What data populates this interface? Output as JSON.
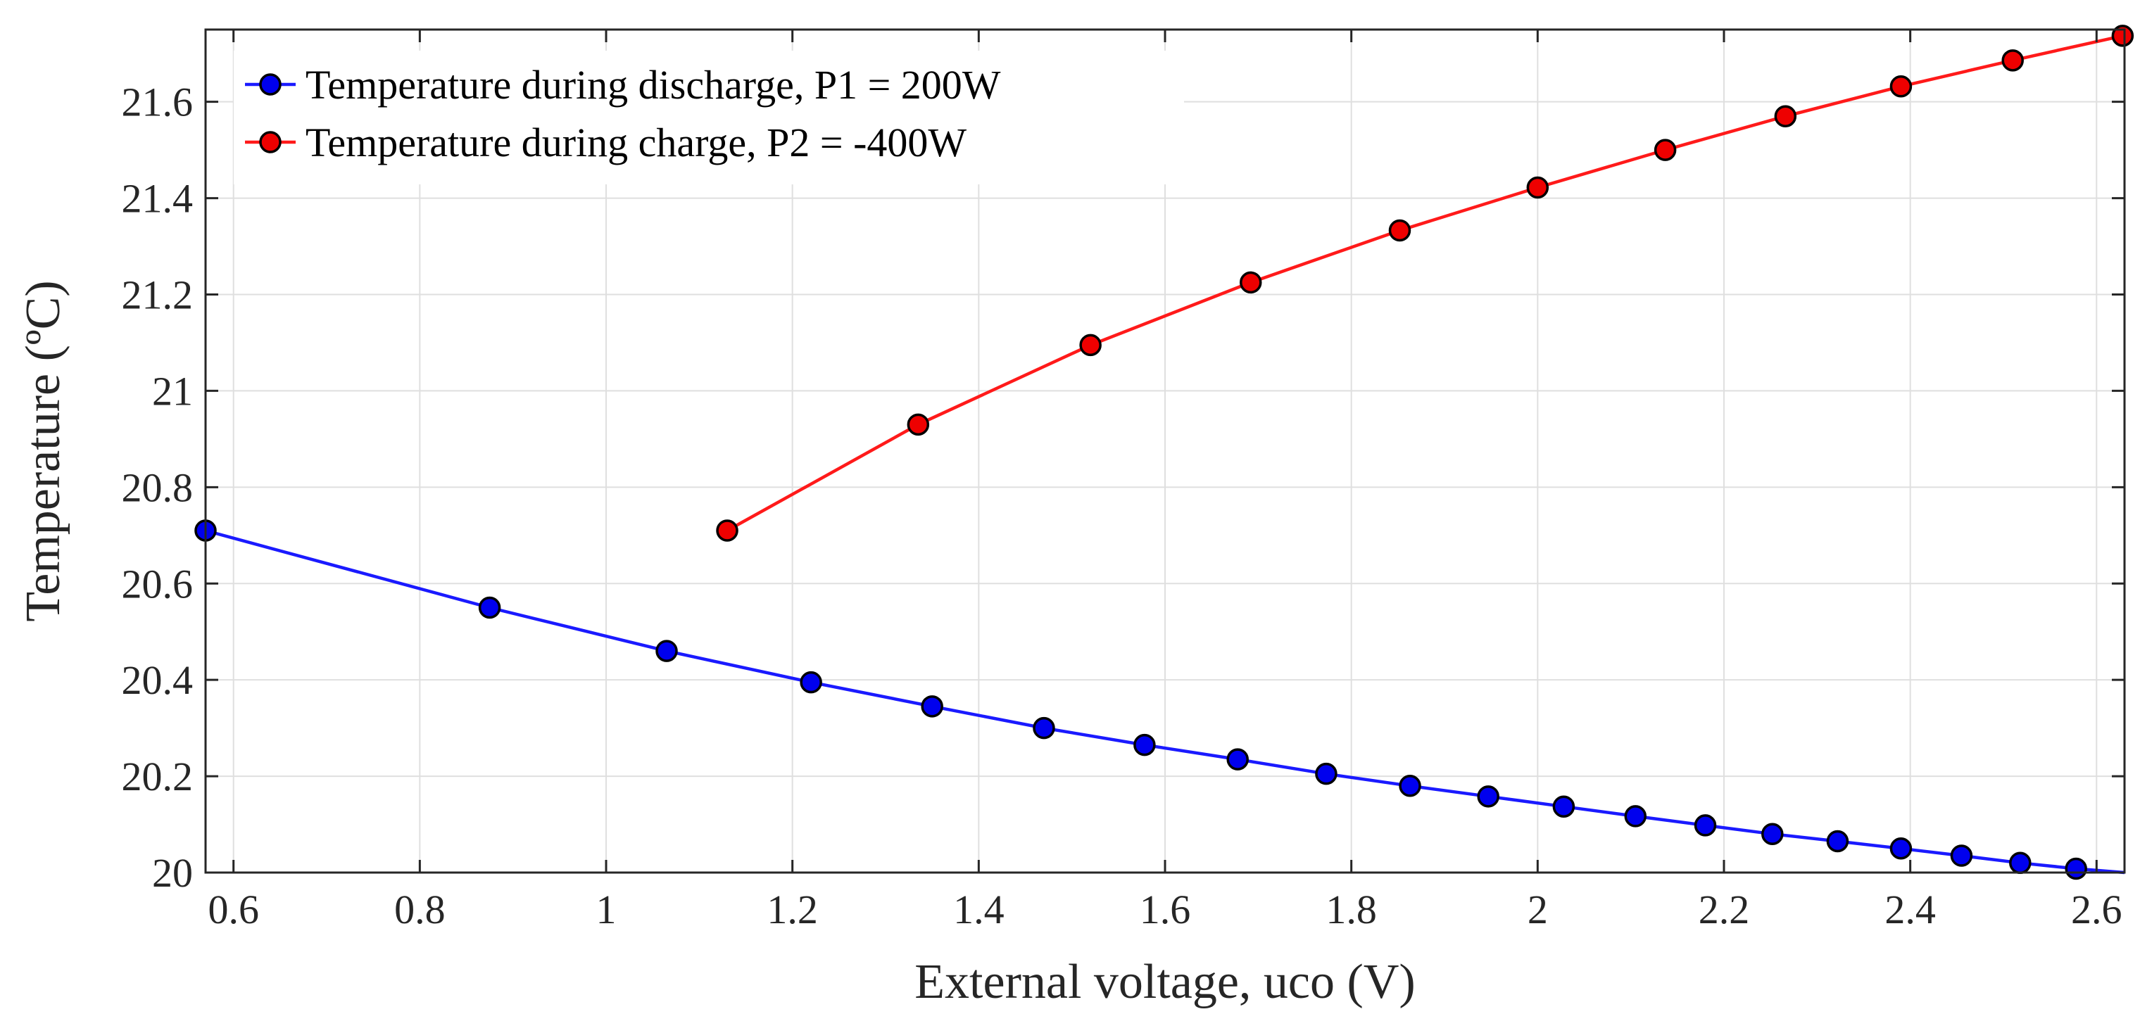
{
  "chart_data": {
    "type": "line",
    "title": "",
    "xlabel": "External voltage, uco (V)",
    "ylabel": "Temperature (ºC)",
    "xlim": [
      0.57,
      2.63
    ],
    "ylim": [
      20,
      21.75
    ],
    "x_ticks": [
      "0.6",
      "0.8",
      "1",
      "1.2",
      "1.4",
      "1.6",
      "1.8",
      "2",
      "2.2",
      "2.4",
      "2.6"
    ],
    "y_ticks": [
      "20",
      "20.2",
      "20.4",
      "20.6",
      "20.8",
      "21",
      "21.2",
      "21.4",
      "21.6"
    ],
    "grid": true,
    "legend_position": "top-left",
    "series": [
      {
        "name": "Temperature during discharge, P1 = 200W",
        "color": "#1a1aff",
        "marker_fill": "#0000ee",
        "marker": "circle",
        "x": [
          0.57,
          0.875,
          1.065,
          1.22,
          1.35,
          1.47,
          1.578,
          1.678,
          1.773,
          1.863,
          1.947,
          2.028,
          2.105,
          2.18,
          2.252,
          2.322,
          2.39,
          2.455,
          2.518,
          2.578,
          2.63
        ],
        "y": [
          20.71,
          20.55,
          20.46,
          20.395,
          20.345,
          20.3,
          20.265,
          20.235,
          20.205,
          20.18,
          20.158,
          20.137,
          20.117,
          20.098,
          20.08,
          20.065,
          20.05,
          20.035,
          20.02,
          20.008,
          20.0
        ],
        "marker_indices": [
          0,
          1,
          2,
          3,
          4,
          5,
          6,
          7,
          8,
          9,
          10,
          11,
          12,
          13,
          14,
          15,
          16,
          17,
          18,
          19
        ]
      },
      {
        "name": "Temperature during charge, P2 = -400W",
        "color": "#ff1a1a",
        "marker_fill": "#ee0000",
        "marker": "circle",
        "x": [
          1.13,
          1.335,
          1.52,
          1.692,
          1.852,
          2.0,
          2.137,
          2.266,
          2.39,
          2.51,
          2.628
        ],
        "y": [
          20.71,
          20.93,
          21.095,
          21.225,
          21.333,
          21.422,
          21.5,
          21.57,
          21.632,
          21.686,
          21.737
        ],
        "marker_indices": [
          0,
          1,
          2,
          3,
          4,
          5,
          6,
          7,
          8,
          9,
          10
        ]
      }
    ]
  }
}
